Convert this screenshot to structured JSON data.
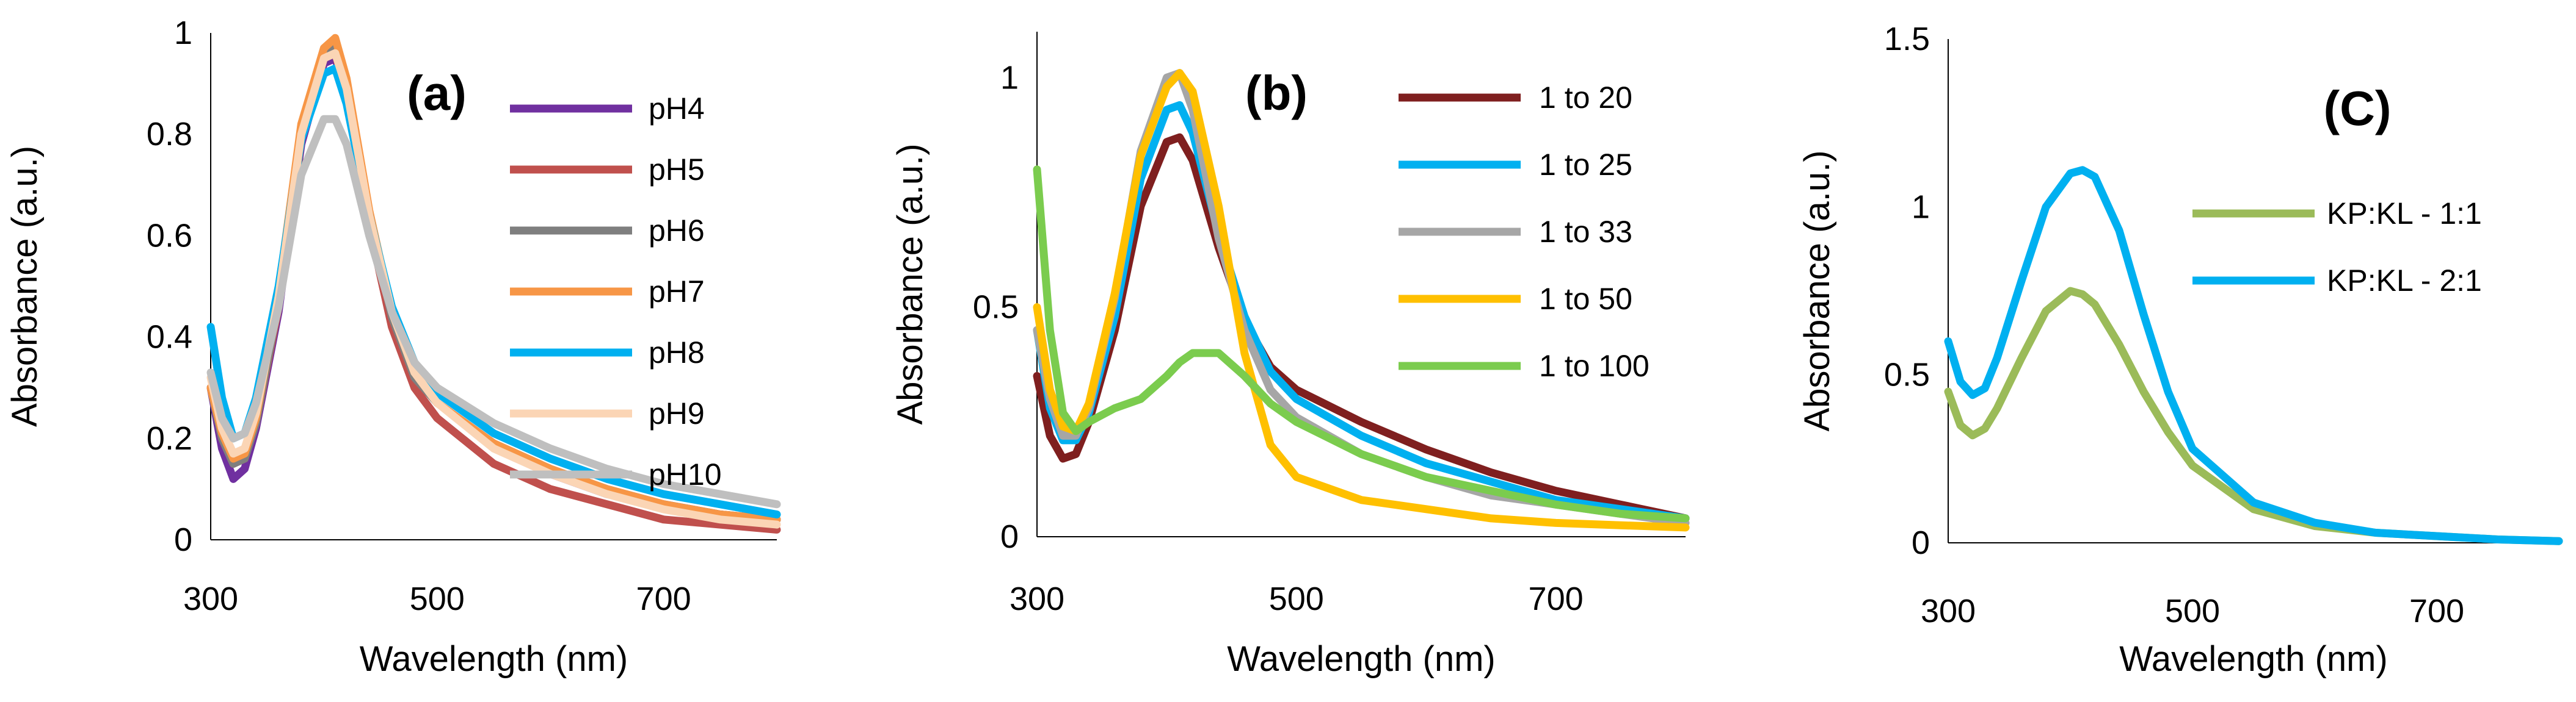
{
  "chart_data": [
    {
      "type": "line",
      "panel_label": "(a)",
      "xlabel": "Wavelength (nm)",
      "ylabel": "Absorbance (a.u.)",
      "xlim": [
        300,
        800
      ],
      "ylim": [
        0,
        1
      ],
      "xticks": [
        300,
        500,
        700
      ],
      "yticks": [
        0,
        0.2,
        0.4,
        0.6,
        0.8,
        1
      ],
      "ytick_labels": [
        "0",
        "0.2",
        "0.4",
        "0.6",
        "0.8",
        "1"
      ],
      "grid": false,
      "legend_position": "right",
      "x": [
        300,
        310,
        320,
        330,
        340,
        360,
        380,
        400,
        410,
        420,
        440,
        460,
        480,
        500,
        550,
        600,
        650,
        700,
        750,
        800
      ],
      "series": [
        {
          "name": "pH4",
          "color": "#7030a0",
          "values": [
            0.3,
            0.18,
            0.12,
            0.14,
            0.22,
            0.45,
            0.78,
            0.94,
            0.95,
            0.88,
            0.64,
            0.44,
            0.33,
            0.27,
            0.19,
            0.13,
            0.09,
            0.07,
            0.05,
            0.04
          ]
        },
        {
          "name": "pH5",
          "color": "#c0504d",
          "values": [
            0.3,
            0.2,
            0.15,
            0.16,
            0.23,
            0.46,
            0.79,
            0.95,
            0.96,
            0.88,
            0.62,
            0.42,
            0.3,
            0.24,
            0.15,
            0.1,
            0.07,
            0.04,
            0.03,
            0.02
          ]
        },
        {
          "name": "pH6",
          "color": "#7f7f7f",
          "values": [
            0.3,
            0.2,
            0.15,
            0.16,
            0.23,
            0.47,
            0.8,
            0.96,
            0.97,
            0.9,
            0.64,
            0.44,
            0.32,
            0.27,
            0.19,
            0.14,
            0.1,
            0.07,
            0.05,
            0.04
          ]
        },
        {
          "name": "pH7",
          "color": "#f79646",
          "values": [
            0.3,
            0.21,
            0.16,
            0.17,
            0.24,
            0.49,
            0.82,
            0.97,
            0.99,
            0.91,
            0.65,
            0.45,
            0.33,
            0.27,
            0.19,
            0.14,
            0.1,
            0.07,
            0.05,
            0.04
          ]
        },
        {
          "name": "pH8",
          "color": "#00b0f0",
          "values": [
            0.42,
            0.28,
            0.2,
            0.21,
            0.28,
            0.5,
            0.79,
            0.92,
            0.93,
            0.86,
            0.64,
            0.46,
            0.35,
            0.29,
            0.21,
            0.16,
            0.12,
            0.09,
            0.07,
            0.05
          ]
        },
        {
          "name": "pH9",
          "color": "#fbd5b5",
          "values": [
            0.32,
            0.22,
            0.17,
            0.18,
            0.25,
            0.48,
            0.8,
            0.95,
            0.96,
            0.89,
            0.64,
            0.45,
            0.33,
            0.27,
            0.18,
            0.13,
            0.09,
            0.06,
            0.04,
            0.03
          ]
        },
        {
          "name": "pH10",
          "color": "#bfbfbf",
          "values": [
            0.33,
            0.24,
            0.2,
            0.21,
            0.27,
            0.46,
            0.72,
            0.83,
            0.83,
            0.78,
            0.6,
            0.45,
            0.35,
            0.3,
            0.23,
            0.18,
            0.14,
            0.11,
            0.09,
            0.07
          ]
        }
      ]
    },
    {
      "type": "line",
      "panel_label": "(b)",
      "xlabel": "Wavelength (nm)",
      "ylabel": "Absorbance (a.u.)",
      "xlim": [
        300,
        800
      ],
      "ylim": [
        0,
        1.1
      ],
      "xticks": [
        300,
        500,
        700
      ],
      "yticks": [
        0,
        0.5,
        1
      ],
      "ytick_labels": [
        "0",
        "0.5",
        "1"
      ],
      "grid": false,
      "legend_position": "right",
      "x": [
        300,
        310,
        320,
        330,
        340,
        360,
        380,
        400,
        410,
        420,
        440,
        460,
        480,
        500,
        550,
        600,
        650,
        700,
        750,
        800
      ],
      "series": [
        {
          "name": "1 to 20",
          "color": "#7f1f1f",
          "values": [
            0.35,
            0.22,
            0.17,
            0.18,
            0.25,
            0.45,
            0.72,
            0.86,
            0.87,
            0.82,
            0.63,
            0.47,
            0.37,
            0.32,
            0.25,
            0.19,
            0.14,
            0.1,
            0.07,
            0.04
          ]
        },
        {
          "name": "1 to 25",
          "color": "#00b0f0",
          "values": [
            0.45,
            0.28,
            0.21,
            0.21,
            0.27,
            0.48,
            0.78,
            0.93,
            0.94,
            0.88,
            0.66,
            0.48,
            0.36,
            0.3,
            0.22,
            0.16,
            0.12,
            0.08,
            0.06,
            0.04
          ]
        },
        {
          "name": "1 to 33",
          "color": "#a6a6a6",
          "values": [
            0.45,
            0.3,
            0.22,
            0.22,
            0.28,
            0.52,
            0.84,
            1.0,
            1.01,
            0.93,
            0.65,
            0.45,
            0.32,
            0.26,
            0.18,
            0.13,
            0.09,
            0.07,
            0.05,
            0.03
          ]
        },
        {
          "name": "1 to 50",
          "color": "#ffc000",
          "values": [
            0.5,
            0.32,
            0.24,
            0.23,
            0.29,
            0.53,
            0.83,
            0.98,
            1.01,
            0.97,
            0.72,
            0.4,
            0.2,
            0.13,
            0.08,
            0.06,
            0.04,
            0.03,
            0.025,
            0.02
          ]
        },
        {
          "name": "1 to 100",
          "color": "#7bcc4e",
          "values": [
            0.8,
            0.45,
            0.27,
            0.23,
            0.25,
            0.28,
            0.3,
            0.35,
            0.38,
            0.4,
            0.4,
            0.35,
            0.29,
            0.25,
            0.18,
            0.13,
            0.1,
            0.07,
            0.05,
            0.04
          ]
        }
      ]
    },
    {
      "type": "line",
      "panel_label": "(C)",
      "xlabel": "Wavelength (nm)",
      "ylabel": "Absorbance (a.u.)",
      "xlim": [
        300,
        800
      ],
      "ylim": [
        0,
        1.5
      ],
      "xticks": [
        300,
        500,
        700
      ],
      "yticks": [
        0,
        0.5,
        1,
        1.5
      ],
      "ytick_labels": [
        "0",
        "0.5",
        "1",
        "1.5"
      ],
      "grid": false,
      "legend_position": "right",
      "x": [
        300,
        310,
        320,
        330,
        340,
        360,
        380,
        400,
        410,
        420,
        440,
        460,
        480,
        500,
        550,
        600,
        650,
        700,
        750,
        800
      ],
      "series": [
        {
          "name": "KP:KL - 1:1",
          "color": "#9bbb59",
          "values": [
            0.45,
            0.35,
            0.32,
            0.34,
            0.4,
            0.55,
            0.69,
            0.75,
            0.74,
            0.71,
            0.59,
            0.45,
            0.33,
            0.23,
            0.1,
            0.05,
            0.03,
            0.02,
            0.01,
            0.005
          ]
        },
        {
          "name": "KP:KL - 2:1",
          "color": "#00b0f0",
          "values": [
            0.6,
            0.48,
            0.44,
            0.46,
            0.55,
            0.78,
            1.0,
            1.1,
            1.11,
            1.09,
            0.93,
            0.68,
            0.45,
            0.28,
            0.12,
            0.06,
            0.03,
            0.02,
            0.01,
            0.005
          ]
        }
      ]
    }
  ]
}
